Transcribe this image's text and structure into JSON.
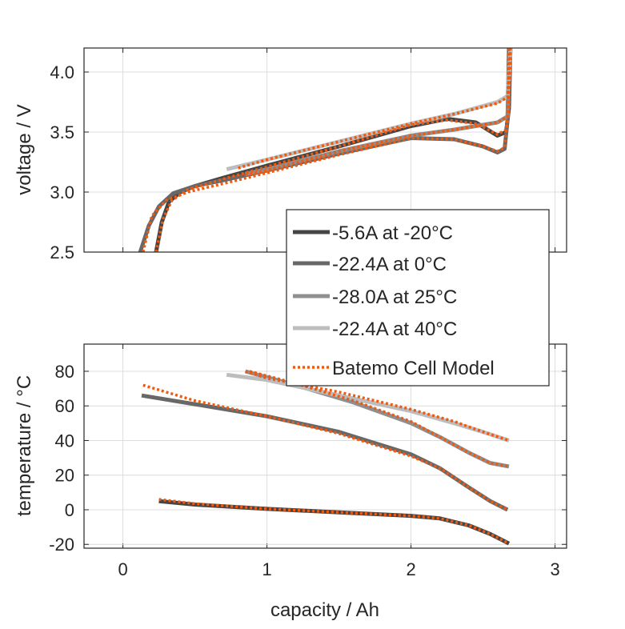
{
  "chart_data": [
    {
      "type": "line",
      "ylabel": "voltage / V",
      "xlim": [
        -0.27,
        3.08
      ],
      "ylim": [
        2.5,
        4.2
      ],
      "yticks": [
        2.5,
        3.0,
        3.5,
        4.0
      ],
      "ytick_labels": [
        "2.5",
        "3.0",
        "3.5",
        "4.0"
      ],
      "xticks": [
        0,
        1,
        2,
        3
      ],
      "grid": true,
      "series": [
        {
          "name": "-5.6A at -20°C",
          "color": "#454545",
          "x": [
            0.23,
            0.27,
            0.32,
            0.4,
            0.5,
            0.7,
            1.0,
            1.5,
            2.0,
            2.25,
            2.45,
            2.6,
            2.66,
            2.68,
            2.69
          ],
          "y": [
            2.5,
            2.75,
            2.92,
            3.0,
            3.05,
            3.12,
            3.22,
            3.38,
            3.55,
            3.61,
            3.58,
            3.47,
            3.5,
            3.7,
            4.2
          ]
        },
        {
          "name": "-22.4A at 0°C",
          "color": "#686868",
          "x": [
            0.12,
            0.18,
            0.25,
            0.35,
            0.5,
            0.7,
            1.0,
            1.5,
            2.0,
            2.3,
            2.5,
            2.6,
            2.65,
            2.67,
            2.68
          ],
          "y": [
            2.5,
            2.72,
            2.88,
            2.99,
            3.05,
            3.1,
            3.18,
            3.32,
            3.45,
            3.44,
            3.38,
            3.33,
            3.36,
            3.6,
            4.2
          ]
        },
        {
          "name": "-28.0A at 25°C",
          "color": "#8f8f8f",
          "x": [
            0.85,
            1.0,
            1.5,
            2.0,
            2.3,
            2.6,
            2.67,
            2.69
          ],
          "y": [
            3.15,
            3.19,
            3.34,
            3.47,
            3.52,
            3.58,
            3.63,
            4.2
          ]
        },
        {
          "name": "-22.4A at 40°C",
          "color": "#bdbdbd",
          "x": [
            0.72,
            1.0,
            1.5,
            2.0,
            2.3,
            2.6,
            2.67,
            2.69
          ],
          "y": [
            3.19,
            3.27,
            3.42,
            3.57,
            3.65,
            3.75,
            3.8,
            4.2
          ]
        },
        {
          "name": "Batemo Cell Model",
          "color": "#ee5a12",
          "dashed": true,
          "x": [
            0.23,
            0.28,
            0.34,
            0.45,
            0.7,
            1.0,
            1.5,
            2.0,
            2.25,
            2.45,
            2.6,
            2.66,
            2.68,
            2.69
          ],
          "y": [
            2.5,
            2.78,
            2.93,
            3.02,
            3.11,
            3.21,
            3.38,
            3.56,
            3.6,
            3.57,
            3.48,
            3.52,
            3.7,
            4.2
          ]
        },
        {
          "color": "#ee5a12",
          "dashed": true,
          "x": [
            0.14,
            0.2,
            0.3,
            0.45,
            0.8,
            1.0,
            1.5,
            2.0,
            2.3,
            2.5,
            2.6,
            2.65,
            2.67,
            2.68
          ],
          "y": [
            2.5,
            2.8,
            2.93,
            3.0,
            3.1,
            3.16,
            3.31,
            3.45,
            3.44,
            3.38,
            3.34,
            3.37,
            3.6,
            4.2
          ]
        },
        {
          "color": "#ee5a12",
          "dashed": true,
          "x": [
            0.85,
            1.0,
            1.5,
            2.0,
            2.3,
            2.6,
            2.67,
            2.69
          ],
          "y": [
            3.14,
            3.18,
            3.34,
            3.47,
            3.52,
            3.58,
            3.63,
            4.2
          ]
        },
        {
          "color": "#ee5a12",
          "dashed": true,
          "x": [
            0.8,
            1.0,
            1.5,
            2.0,
            2.3,
            2.6,
            2.67,
            2.69
          ],
          "y": [
            3.2,
            3.27,
            3.42,
            3.57,
            3.65,
            3.74,
            3.79,
            4.2
          ]
        }
      ]
    },
    {
      "type": "line",
      "xlabel": "capacity / Ah",
      "ylabel": "temperature / °C",
      "xlim": [
        -0.27,
        3.08
      ],
      "ylim": [
        -22.2,
        95.7
      ],
      "yticks": [
        -20,
        0,
        20,
        40,
        60,
        80
      ],
      "ytick_labels": [
        "-20",
        "0",
        "20",
        "40",
        "60",
        "80"
      ],
      "xticks": [
        0,
        1,
        2,
        3
      ],
      "xtick_labels": [
        "0",
        "1",
        "2",
        "3"
      ],
      "grid": true,
      "series": [
        {
          "name": "-5.6A at -20°C",
          "color": "#454545",
          "x": [
            0.25,
            0.5,
            1.0,
            1.5,
            2.0,
            2.2,
            2.4,
            2.55,
            2.68
          ],
          "y": [
            5,
            3,
            0.5,
            -1.5,
            -3.5,
            -5,
            -9,
            -14,
            -19.5
          ]
        },
        {
          "name": "-22.4A at 0°C",
          "color": "#686868",
          "x": [
            0.13,
            0.5,
            1.0,
            1.5,
            2.0,
            2.2,
            2.4,
            2.55,
            2.67
          ],
          "y": [
            66,
            61,
            54,
            45,
            32,
            24,
            13,
            5,
            0
          ]
        },
        {
          "name": "-28.0A at 25°C",
          "color": "#8f8f8f",
          "x": [
            0.85,
            1.2,
            1.6,
            2.0,
            2.2,
            2.4,
            2.55,
            2.68
          ],
          "y": [
            80,
            72,
            62,
            50,
            42,
            33,
            27,
            25
          ]
        },
        {
          "name": "-22.4A at 40°C",
          "color": "#bdbdbd",
          "x": [
            0.72,
            1.0,
            1.5,
            2.0,
            2.3,
            2.5,
            2.68
          ],
          "y": [
            78,
            75,
            66,
            57,
            50,
            45,
            40
          ]
        },
        {
          "name": "Batemo Cell Model",
          "color": "#ee5a12",
          "dashed": true,
          "x": [
            0.25,
            0.5,
            1.0,
            1.5,
            2.0,
            2.2,
            2.4,
            2.55,
            2.68
          ],
          "y": [
            6,
            3.5,
            0.5,
            -1.5,
            -3.5,
            -5,
            -9,
            -14,
            -19.5
          ]
        },
        {
          "color": "#ee5a12",
          "dashed": true,
          "x": [
            0.14,
            0.5,
            1.0,
            1.5,
            2.0,
            2.2,
            2.4,
            2.55,
            2.67
          ],
          "y": [
            72,
            63,
            54,
            44,
            31,
            24,
            13,
            5,
            0
          ]
        },
        {
          "color": "#ee5a12",
          "dashed": true,
          "x": [
            0.88,
            1.2,
            1.6,
            2.0,
            2.2,
            2.4,
            2.55,
            2.68
          ],
          "y": [
            80,
            73,
            63,
            51,
            42,
            33,
            27,
            25
          ]
        },
        {
          "color": "#ee5a12",
          "dashed": true,
          "x": [
            0.85,
            1.0,
            1.5,
            2.0,
            2.3,
            2.5,
            2.68
          ],
          "y": [
            80,
            76,
            68,
            58,
            51,
            45,
            40
          ]
        }
      ]
    }
  ],
  "legend": {
    "placement": "center-right",
    "entries": [
      "-5.6A at -20°C",
      "-22.4A at 0°C",
      "-28.0A at 25°C",
      "-22.4A at 40°C",
      "Batemo Cell Model"
    ]
  }
}
